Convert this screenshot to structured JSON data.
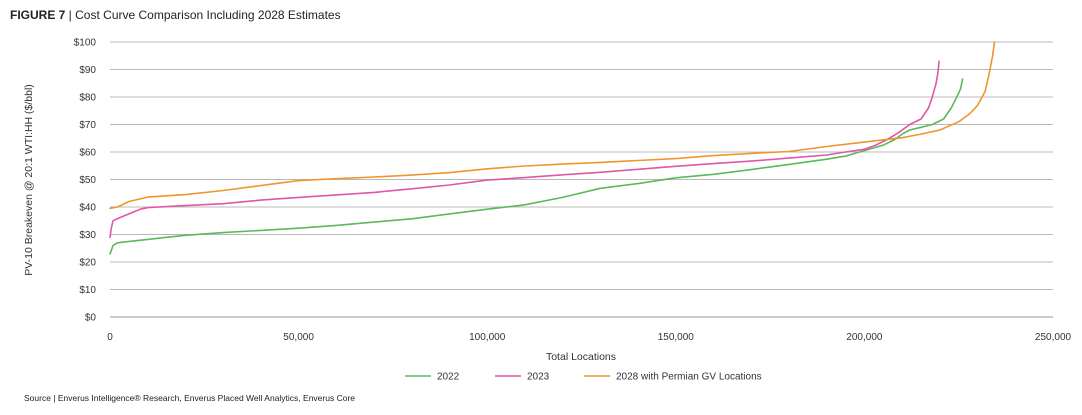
{
  "figure": {
    "label": "FIGURE 7",
    "separator": " | ",
    "title": "Cost Curve Comparison Including 2028 Estimates",
    "source": "Source | Enverus Intelligence® Research, Enverus Placed Well Analytics, Enverus Core"
  },
  "chart_data": {
    "type": "line",
    "title": "Cost Curve Comparison Including 2028 Estimates",
    "xlabel": "Total Locations",
    "ylabel": "PV-10 Breakeven @ 20:1 WTI:HH ($/bbl)",
    "xlim": [
      0,
      250000
    ],
    "ylim": [
      0,
      100
    ],
    "x_ticks": [
      0,
      50000,
      100000,
      150000,
      200000,
      250000
    ],
    "x_tick_labels": [
      "0",
      "50,000",
      "100,000",
      "150,000",
      "200,000",
      "250,000"
    ],
    "y_ticks": [
      0,
      10,
      20,
      30,
      40,
      50,
      60,
      70,
      80,
      90,
      100
    ],
    "y_tick_labels": [
      "$0",
      "$10",
      "$20",
      "$30",
      "$40",
      "$50",
      "$60",
      "$70",
      "$80",
      "$90",
      "$100"
    ],
    "grid": "horizontal",
    "legend_position": "bottom",
    "series": [
      {
        "name": "2022",
        "color": "#5cb85c",
        "points": [
          [
            0,
            23
          ],
          [
            300,
            24
          ],
          [
            800,
            26
          ],
          [
            2000,
            27
          ],
          [
            5000,
            27.5
          ],
          [
            10000,
            28.2
          ],
          [
            15000,
            29
          ],
          [
            20000,
            29.7
          ],
          [
            30000,
            30.7
          ],
          [
            40000,
            31.5
          ],
          [
            50000,
            32.3
          ],
          [
            60000,
            33.3
          ],
          [
            70000,
            34.5
          ],
          [
            80000,
            35.7
          ],
          [
            90000,
            37.5
          ],
          [
            100000,
            39.2
          ],
          [
            110000,
            40.8
          ],
          [
            120000,
            43.5
          ],
          [
            130000,
            46.8
          ],
          [
            140000,
            48.5
          ],
          [
            150000,
            50.6
          ],
          [
            160000,
            51.9
          ],
          [
            170000,
            53.6
          ],
          [
            180000,
            55.5
          ],
          [
            190000,
            57.4
          ],
          [
            195000,
            58.5
          ],
          [
            200000,
            60.5
          ],
          [
            205000,
            62.5
          ],
          [
            208000,
            64.5
          ],
          [
            210000,
            66.5
          ],
          [
            212000,
            68
          ],
          [
            215000,
            69
          ],
          [
            218000,
            70
          ],
          [
            221000,
            72
          ],
          [
            223000,
            76
          ],
          [
            224500,
            80
          ],
          [
            225500,
            83
          ],
          [
            226000,
            86.5
          ]
        ]
      },
      {
        "name": "2023",
        "color": "#e056a8",
        "points": [
          [
            0,
            29
          ],
          [
            300,
            32
          ],
          [
            800,
            35
          ],
          [
            2000,
            35.8
          ],
          [
            5000,
            37.5
          ],
          [
            8000,
            39.2
          ],
          [
            10000,
            39.8
          ],
          [
            20000,
            40.5
          ],
          [
            30000,
            41.2
          ],
          [
            40000,
            42.5
          ],
          [
            50000,
            43.5
          ],
          [
            60000,
            44.4
          ],
          [
            70000,
            45.3
          ],
          [
            80000,
            46.6
          ],
          [
            90000,
            48
          ],
          [
            100000,
            49.8
          ],
          [
            110000,
            50.7
          ],
          [
            120000,
            51.7
          ],
          [
            130000,
            52.6
          ],
          [
            140000,
            53.7
          ],
          [
            150000,
            54.8
          ],
          [
            160000,
            55.8
          ],
          [
            170000,
            56.7
          ],
          [
            180000,
            57.8
          ],
          [
            190000,
            58.9
          ],
          [
            195000,
            60
          ],
          [
            200000,
            61
          ],
          [
            203000,
            62.5
          ],
          [
            206000,
            64.5
          ],
          [
            209000,
            67
          ],
          [
            212000,
            70
          ],
          [
            215000,
            72
          ],
          [
            217000,
            76
          ],
          [
            218000,
            80
          ],
          [
            219000,
            85
          ],
          [
            219500,
            89
          ],
          [
            219800,
            93
          ]
        ]
      },
      {
        "name": "2028 with Permian GV Locations",
        "color": "#f0952e",
        "points": [
          [
            0,
            39.5
          ],
          [
            2000,
            40
          ],
          [
            5000,
            42
          ],
          [
            10000,
            43.6
          ],
          [
            20000,
            44.5
          ],
          [
            30000,
            46
          ],
          [
            40000,
            47.8
          ],
          [
            50000,
            49.6
          ],
          [
            60000,
            50.3
          ],
          [
            70000,
            50.9
          ],
          [
            80000,
            51.6
          ],
          [
            90000,
            52.5
          ],
          [
            100000,
            53.9
          ],
          [
            110000,
            54.9
          ],
          [
            120000,
            55.6
          ],
          [
            130000,
            56.2
          ],
          [
            140000,
            56.9
          ],
          [
            150000,
            57.6
          ],
          [
            160000,
            58.7
          ],
          [
            170000,
            59.5
          ],
          [
            180000,
            60.2
          ],
          [
            190000,
            62
          ],
          [
            200000,
            63.6
          ],
          [
            210000,
            65.2
          ],
          [
            215000,
            66.5
          ],
          [
            220000,
            68
          ],
          [
            225000,
            71
          ],
          [
            228000,
            74
          ],
          [
            230000,
            77
          ],
          [
            232000,
            82
          ],
          [
            233000,
            88
          ],
          [
            234000,
            95
          ],
          [
            234500,
            100
          ]
        ]
      }
    ]
  }
}
